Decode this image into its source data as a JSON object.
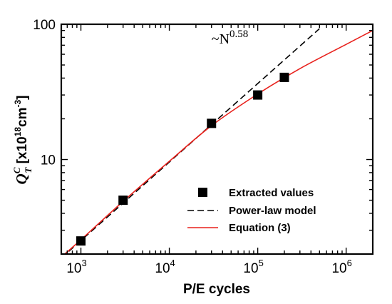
{
  "chart_data": {
    "type": "scatter",
    "xlabel": "P/E cycles",
    "ylabel": {
      "main": "Q",
      "sup": "C",
      "sub": "T",
      "unit_prefix": " [x10",
      "unit_exp": "18",
      "unit_mid": "cm",
      "unit_exp2": "-3",
      "unit_suffix": "]"
    },
    "xscale": "log",
    "yscale": "log",
    "xlim": [
      600,
      2000000
    ],
    "ylim": [
      2,
      100
    ],
    "x_ticks": [
      {
        "value": 1000,
        "base": "10",
        "exp": "3"
      },
      {
        "value": 10000,
        "base": "10",
        "exp": "4"
      },
      {
        "value": 100000,
        "base": "10",
        "exp": "5"
      },
      {
        "value": 1000000,
        "base": "10",
        "exp": "6"
      }
    ],
    "y_ticks": [
      {
        "value": 10,
        "label": "10"
      },
      {
        "value": 100,
        "label": "100"
      }
    ],
    "annotation": {
      "prefix": "~N",
      "exp": "0.58",
      "x": 30000,
      "y": 72
    },
    "series": [
      {
        "name": "Extracted values",
        "kind": "markers",
        "color": "#000000",
        "x": [
          1000,
          3000,
          30000,
          100000,
          200000
        ],
        "y": [
          2.5,
          5.0,
          18.5,
          30.0,
          40.5
        ]
      },
      {
        "name": "Power-law model",
        "kind": "dashed-line",
        "color": "#000000",
        "x": [
          600,
          500000
        ],
        "y": [
          1.87,
          92.8
        ]
      },
      {
        "name": "Equation (3)",
        "kind": "line",
        "color": "#e8211c",
        "x": [
          600,
          1000,
          3000,
          10000,
          30000,
          100000,
          300000,
          1000000,
          2000000
        ],
        "y": [
          1.9,
          2.55,
          4.9,
          9.7,
          17.8,
          30.5,
          47.0,
          71.0,
          90.0
        ]
      }
    ],
    "legend": {
      "position": "bottom-right"
    },
    "grid": false
  }
}
